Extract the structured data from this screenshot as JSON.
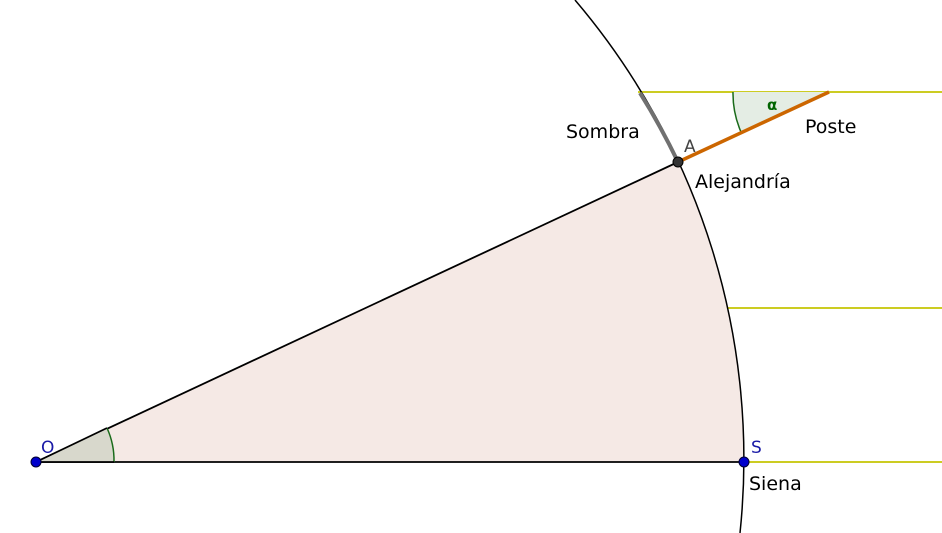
{
  "labels": {
    "point_o": "O",
    "point_a": "A",
    "point_s": "S",
    "alejandria": "Alejandría",
    "siena": "Siena",
    "sombra": "Sombra",
    "poste": "Poste",
    "alpha": "α"
  },
  "colors": {
    "sector_fill": "#f5e9e5",
    "sun_rays": "#cccc22",
    "pole": "#cc6600",
    "shadow_arc": "#707070",
    "angle_stroke": "#1a6b1a",
    "angle_fill_o": "#d8d8cc",
    "angle_fill_alpha": "#e4ede4",
    "point_blue": "#0000cc",
    "point_dark": "#333333",
    "outline": "#000000"
  }
}
